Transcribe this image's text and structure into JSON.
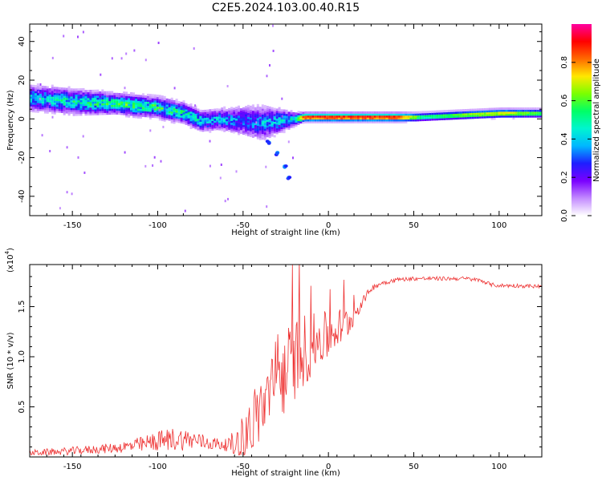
{
  "chart_data": [
    {
      "type": "heatmap",
      "title": "C2E5.2024.103.00.40.R15",
      "xlabel": "Height of straight line (km)",
      "ylabel": "Frequency (Hz)",
      "xlim": [
        -175,
        125
      ],
      "ylim": [
        -50,
        49
      ],
      "xticks": [
        "-150",
        "-100",
        "-50",
        "0",
        "50",
        "100"
      ],
      "yticks": [
        "-40",
        "-20",
        "0",
        "20",
        "40"
      ],
      "colorbar": {
        "label": "Normalized spectral amplitude",
        "range": [
          0,
          1
        ],
        "ticks": [
          "0.0",
          "0.2",
          "0.4",
          "0.6",
          "0.8"
        ],
        "colors": [
          "#ffffff",
          "#c38bff",
          "#7a00ff",
          "#1e1eff",
          "#00b7ff",
          "#00f5d0",
          "#00ff66",
          "#7aff00",
          "#ffe800",
          "#ff6a00",
          "#ff0000",
          "#ff00a0"
        ]
      },
      "ridge": [
        {
          "x": -175,
          "freq": 11,
          "spread": 6
        },
        {
          "x": -150,
          "freq": 9,
          "spread": 6
        },
        {
          "x": -125,
          "freq": 8,
          "spread": 5
        },
        {
          "x": -100,
          "freq": 6,
          "spread": 5
        },
        {
          "x": -85,
          "freq": 3,
          "spread": 5
        },
        {
          "x": -75,
          "freq": -1,
          "spread": 5
        },
        {
          "x": -65,
          "freq": 0,
          "spread": 5
        },
        {
          "x": -50,
          "freq": -1,
          "spread": 7
        },
        {
          "x": -40,
          "freq": -2,
          "spread": 8
        },
        {
          "x": -30,
          "freq": -1,
          "spread": 6
        },
        {
          "x": -20,
          "freq": 0,
          "spread": 3
        },
        {
          "x": -15,
          "freq": 1,
          "spread": 2
        },
        {
          "x": 0,
          "freq": 1,
          "spread": 2
        },
        {
          "x": 50,
          "freq": 1,
          "spread": 2
        },
        {
          "x": 100,
          "freq": 3,
          "spread": 2
        },
        {
          "x": 125,
          "freq": 3,
          "spread": 2
        }
      ],
      "secondary_branch": [
        {
          "x": -35,
          "freq": -12
        },
        {
          "x": -30,
          "freq": -18
        },
        {
          "x": -25,
          "freq": -25
        },
        {
          "x": -23,
          "freq": -31
        }
      ],
      "peak_intensity": [
        {
          "x": -175,
          "amp": 0.45
        },
        {
          "x": -120,
          "amp": 0.6
        },
        {
          "x": -90,
          "amp": 0.55
        },
        {
          "x": -50,
          "amp": 0.35
        },
        {
          "x": -20,
          "amp": 0.5
        },
        {
          "x": -15,
          "amp": 0.95
        },
        {
          "x": 40,
          "amp": 0.95
        },
        {
          "x": 55,
          "amp": 0.55
        },
        {
          "x": 85,
          "amp": 0.7
        },
        {
          "x": 105,
          "amp": 0.75
        },
        {
          "x": 125,
          "amp": 0.6
        }
      ]
    },
    {
      "type": "line",
      "xlabel": "Height of straight line (km)",
      "ylabel": "SNR (10 * v/v)",
      "scale_label": "(x10",
      "scale_exponent": "4",
      "xlim": [
        -175,
        125
      ],
      "ylim": [
        0,
        1.92
      ],
      "xticks": [
        "-150",
        "-100",
        "-50",
        "0",
        "50",
        "100"
      ],
      "yticks": [
        "0.5",
        "1.0",
        "1.5"
      ],
      "line_color": "#ee3333",
      "series": [
        {
          "x": [
            -175,
            -150,
            -125,
            -110,
            -100,
            -90,
            -80,
            -70,
            -60,
            -55,
            -50,
            -45,
            -40,
            -35,
            -30,
            -25,
            -20,
            -15,
            -10,
            -5,
            0,
            5,
            10,
            15,
            20,
            25,
            30,
            40,
            50,
            60,
            70,
            80,
            85,
            90,
            95,
            100,
            110,
            125
          ],
          "values": [
            0.04,
            0.06,
            0.09,
            0.12,
            0.16,
            0.18,
            0.17,
            0.14,
            0.12,
            0.12,
            0.18,
            0.32,
            0.48,
            0.58,
            0.72,
            0.85,
            0.98,
            1.06,
            1.1,
            1.18,
            1.2,
            1.28,
            1.32,
            1.42,
            1.55,
            1.68,
            1.73,
            1.77,
            1.78,
            1.78,
            1.78,
            1.78,
            1.77,
            1.76,
            1.72,
            1.71,
            1.71,
            1.7
          ],
          "noise_amplitude": [
            0.03,
            0.04,
            0.05,
            0.08,
            0.1,
            0.12,
            0.1,
            0.07,
            0.06,
            0.15,
            0.25,
            0.32,
            0.35,
            0.38,
            0.4,
            0.42,
            0.42,
            0.38,
            0.32,
            0.28,
            0.25,
            0.2,
            0.2,
            0.1,
            0.05,
            0.03,
            0.03,
            0.02,
            0.02,
            0.02,
            0.02,
            0.02,
            0.02,
            0.02,
            0.02,
            0.02,
            0.02,
            0.02
          ]
        }
      ]
    }
  ]
}
